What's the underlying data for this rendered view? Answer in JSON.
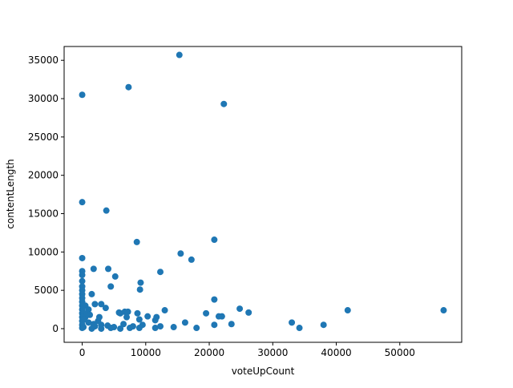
{
  "chart_data": {
    "type": "scatter",
    "xlabel": "voteUpCount",
    "ylabel": "contentLength",
    "color": "#1f77b4",
    "xlim": [
      -2845,
      59745
    ],
    "ylim": [
      -1780,
      36800
    ],
    "xticks": [
      0,
      10000,
      20000,
      30000,
      40000,
      50000
    ],
    "yticks": [
      0,
      5000,
      10000,
      15000,
      20000,
      25000,
      30000,
      35000
    ],
    "x": [
      0,
      7300,
      15300,
      22300,
      0,
      3800,
      8600,
      20800,
      15500,
      17200,
      0,
      1800,
      4100,
      12300,
      0,
      0,
      5200,
      9200,
      9100,
      4500,
      1500,
      20800,
      0,
      0,
      0,
      0,
      0,
      0,
      0,
      0,
      0,
      0,
      0,
      0,
      0,
      500,
      1000,
      2000,
      3000,
      3700,
      13000,
      24800,
      26200,
      41800,
      56900,
      19500,
      21500,
      22000,
      8700,
      7200,
      6000,
      5800,
      6700,
      10300,
      11500,
      11700,
      9000,
      16200,
      20800,
      23500,
      33000,
      34200,
      38000,
      18000,
      14400,
      12300,
      11500,
      9000,
      7500,
      3000,
      2000,
      1000,
      500,
      2500,
      4000,
      5000,
      6500,
      7000,
      8000,
      9500,
      1500,
      3000,
      4500,
      6000,
      200,
      300,
      700,
      1200,
      2700,
      1800
    ],
    "y": [
      30500,
      31500,
      35700,
      29300,
      16500,
      15400,
      11300,
      11600,
      9800,
      9000,
      9200,
      7800,
      7800,
      7400,
      7500,
      7000,
      6800,
      6000,
      5100,
      5500,
      4500,
      3800,
      6200,
      5500,
      5000,
      4500,
      4000,
      3500,
      3000,
      2500,
      2000,
      1500,
      1000,
      500,
      100,
      3000,
      2500,
      3200,
      3200,
      2700,
      2400,
      2600,
      2100,
      2400,
      2400,
      2000,
      1600,
      1600,
      2000,
      2200,
      2000,
      2100,
      2200,
      1600,
      1100,
      1500,
      1200,
      800,
      500,
      600,
      800,
      100,
      500,
      100,
      200,
      300,
      100,
      100,
      100,
      500,
      300,
      800,
      1500,
      1000,
      400,
      200,
      600,
      1500,
      300,
      500,
      0,
      0,
      100,
      0,
      200,
      1200,
      2000,
      1800,
      1500,
      600
    ]
  }
}
